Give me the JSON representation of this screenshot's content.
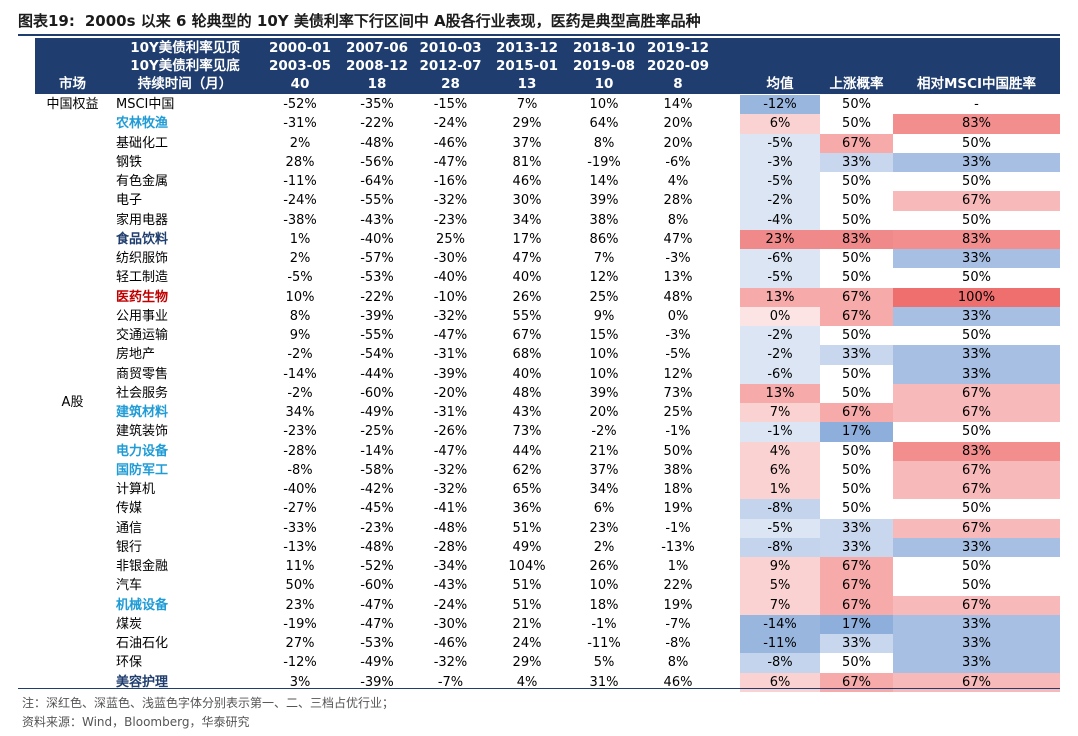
{
  "title": {
    "label": "图表19:",
    "text": "2000s 以来 6 轮典型的 10Y 美债利率下行区间中 A股各行业表现，医药是典型高胜率品种"
  },
  "header": {
    "row1_label": "10Y美债利率见顶",
    "row2_label": "10Y美债利率见底",
    "row3_label": "持续时间（月）",
    "market_label": "市场",
    "periods": [
      {
        "start": "2000-01",
        "end": "2003-05",
        "months": "40"
      },
      {
        "start": "2007-06",
        "end": "2008-12",
        "months": "18"
      },
      {
        "start": "2010-03",
        "end": "2012-07",
        "months": "28"
      },
      {
        "start": "2013-12",
        "end": "2015-01",
        "months": "13"
      },
      {
        "start": "2018-10",
        "end": "2019-08",
        "months": "10"
      },
      {
        "start": "2019-12",
        "end": "2020-09",
        "months": "8"
      }
    ],
    "avg_label": "均值",
    "win_label": "上涨概率",
    "rel_label": "相对MSCI中国胜率"
  },
  "markets": {
    "china_equity": "中国权益",
    "a_share": "A股"
  },
  "rows": [
    {
      "name": "MSCI中国",
      "style": "",
      "vals": [
        "-52%",
        "-35%",
        "-15%",
        "7%",
        "10%",
        "14%"
      ],
      "avg": "-12%",
      "win": "50%",
      "rel": "-"
    },
    {
      "name": "农林牧渔",
      "style": "blue",
      "vals": [
        "-31%",
        "-22%",
        "-24%",
        "29%",
        "64%",
        "20%"
      ],
      "avg": "6%",
      "win": "50%",
      "rel": "83%"
    },
    {
      "name": "基础化工",
      "style": "",
      "vals": [
        "2%",
        "-48%",
        "-46%",
        "37%",
        "8%",
        "20%"
      ],
      "avg": "-5%",
      "win": "67%",
      "rel": "50%"
    },
    {
      "name": "钢铁",
      "style": "",
      "vals": [
        "28%",
        "-56%",
        "-47%",
        "81%",
        "-19%",
        "-6%"
      ],
      "avg": "-3%",
      "win": "33%",
      "rel": "33%"
    },
    {
      "name": "有色金属",
      "style": "",
      "vals": [
        "-11%",
        "-64%",
        "-16%",
        "46%",
        "14%",
        "4%"
      ],
      "avg": "-5%",
      "win": "50%",
      "rel": "50%"
    },
    {
      "name": "电子",
      "style": "",
      "vals": [
        "-24%",
        "-55%",
        "-32%",
        "30%",
        "39%",
        "28%"
      ],
      "avg": "-2%",
      "win": "50%",
      "rel": "67%"
    },
    {
      "name": "家用电器",
      "style": "",
      "vals": [
        "-38%",
        "-43%",
        "-23%",
        "34%",
        "38%",
        "8%"
      ],
      "avg": "-4%",
      "win": "50%",
      "rel": "50%"
    },
    {
      "name": "食品饮料",
      "style": "navy",
      "vals": [
        "1%",
        "-40%",
        "25%",
        "17%",
        "86%",
        "47%"
      ],
      "avg": "23%",
      "win": "83%",
      "rel": "83%"
    },
    {
      "name": "纺织服饰",
      "style": "",
      "vals": [
        "2%",
        "-57%",
        "-30%",
        "47%",
        "7%",
        "-3%"
      ],
      "avg": "-6%",
      "win": "50%",
      "rel": "33%"
    },
    {
      "name": "轻工制造",
      "style": "",
      "vals": [
        "-5%",
        "-53%",
        "-40%",
        "40%",
        "12%",
        "13%"
      ],
      "avg": "-5%",
      "win": "50%",
      "rel": "50%"
    },
    {
      "name": "医药生物",
      "style": "red",
      "vals": [
        "10%",
        "-22%",
        "-10%",
        "26%",
        "25%",
        "48%"
      ],
      "avg": "13%",
      "win": "67%",
      "rel": "100%"
    },
    {
      "name": "公用事业",
      "style": "",
      "vals": [
        "8%",
        "-39%",
        "-32%",
        "55%",
        "9%",
        "0%"
      ],
      "avg": "0%",
      "win": "67%",
      "rel": "33%"
    },
    {
      "name": "交通运输",
      "style": "",
      "vals": [
        "9%",
        "-55%",
        "-47%",
        "67%",
        "15%",
        "-3%"
      ],
      "avg": "-2%",
      "win": "50%",
      "rel": "50%"
    },
    {
      "name": "房地产",
      "style": "",
      "vals": [
        "-2%",
        "-54%",
        "-31%",
        "68%",
        "10%",
        "-5%"
      ],
      "avg": "-2%",
      "win": "33%",
      "rel": "33%"
    },
    {
      "name": "商贸零售",
      "style": "",
      "vals": [
        "-14%",
        "-44%",
        "-39%",
        "40%",
        "10%",
        "12%"
      ],
      "avg": "-6%",
      "win": "50%",
      "rel": "33%"
    },
    {
      "name": "社会服务",
      "style": "",
      "vals": [
        "-2%",
        "-60%",
        "-20%",
        "48%",
        "39%",
        "73%"
      ],
      "avg": "13%",
      "win": "50%",
      "rel": "67%"
    },
    {
      "name": "建筑材料",
      "style": "blue",
      "vals": [
        "34%",
        "-49%",
        "-31%",
        "43%",
        "20%",
        "25%"
      ],
      "avg": "7%",
      "win": "67%",
      "rel": "67%"
    },
    {
      "name": "建筑装饰",
      "style": "",
      "vals": [
        "-23%",
        "-25%",
        "-26%",
        "73%",
        "-2%",
        "-1%"
      ],
      "avg": "-1%",
      "win": "17%",
      "rel": "50%"
    },
    {
      "name": "电力设备",
      "style": "blue",
      "vals": [
        "-28%",
        "-14%",
        "-47%",
        "44%",
        "21%",
        "50%"
      ],
      "avg": "4%",
      "win": "50%",
      "rel": "83%"
    },
    {
      "name": "国防军工",
      "style": "blue",
      "vals": [
        "-8%",
        "-58%",
        "-32%",
        "62%",
        "37%",
        "38%"
      ],
      "avg": "6%",
      "win": "50%",
      "rel": "67%"
    },
    {
      "name": "计算机",
      "style": "",
      "vals": [
        "-40%",
        "-42%",
        "-32%",
        "65%",
        "34%",
        "18%"
      ],
      "avg": "1%",
      "win": "50%",
      "rel": "67%"
    },
    {
      "name": "传媒",
      "style": "",
      "vals": [
        "-27%",
        "-45%",
        "-41%",
        "36%",
        "6%",
        "19%"
      ],
      "avg": "-8%",
      "win": "50%",
      "rel": "50%"
    },
    {
      "name": "通信",
      "style": "",
      "vals": [
        "-33%",
        "-23%",
        "-48%",
        "51%",
        "23%",
        "-1%"
      ],
      "avg": "-5%",
      "win": "33%",
      "rel": "67%"
    },
    {
      "name": "银行",
      "style": "",
      "vals": [
        "-13%",
        "-48%",
        "-28%",
        "49%",
        "2%",
        "-13%"
      ],
      "avg": "-8%",
      "win": "33%",
      "rel": "33%"
    },
    {
      "name": "非银金融",
      "style": "",
      "vals": [
        "11%",
        "-52%",
        "-34%",
        "104%",
        "26%",
        "1%"
      ],
      "avg": "9%",
      "win": "67%",
      "rel": "50%"
    },
    {
      "name": "汽车",
      "style": "",
      "vals": [
        "50%",
        "-60%",
        "-43%",
        "51%",
        "10%",
        "22%"
      ],
      "avg": "5%",
      "win": "67%",
      "rel": "50%"
    },
    {
      "name": "机械设备",
      "style": "blue",
      "vals": [
        "23%",
        "-47%",
        "-24%",
        "51%",
        "18%",
        "19%"
      ],
      "avg": "7%",
      "win": "67%",
      "rel": "67%"
    },
    {
      "name": "煤炭",
      "style": "",
      "vals": [
        "-19%",
        "-47%",
        "-30%",
        "21%",
        "-1%",
        "-7%"
      ],
      "avg": "-14%",
      "win": "17%",
      "rel": "33%"
    },
    {
      "name": "石油石化",
      "style": "",
      "vals": [
        "27%",
        "-53%",
        "-46%",
        "24%",
        "-11%",
        "-8%"
      ],
      "avg": "-11%",
      "win": "33%",
      "rel": "33%"
    },
    {
      "name": "环保",
      "style": "",
      "vals": [
        "-12%",
        "-49%",
        "-32%",
        "29%",
        "5%",
        "8%"
      ],
      "avg": "-8%",
      "win": "50%",
      "rel": "33%"
    },
    {
      "name": "美容护理",
      "style": "navy",
      "vals": [
        "3%",
        "-39%",
        "-7%",
        "4%",
        "31%",
        "46%"
      ],
      "avg": "6%",
      "win": "67%",
      "rel": "67%"
    }
  ],
  "notes": {
    "note1": "注：深红色、深蓝色、浅蓝色字体分别表示第一、二、三档占优行业；",
    "note2": "资料来源：Wind，Bloomberg，华泰研究"
  }
}
